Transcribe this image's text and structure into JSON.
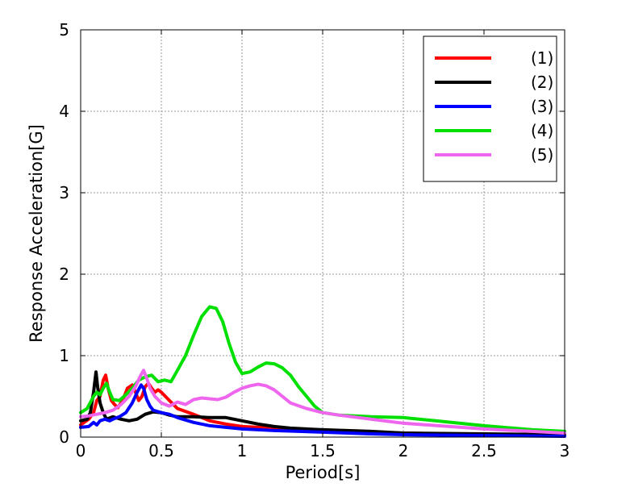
{
  "chart_data": {
    "type": "line",
    "title": "",
    "xlabel": "Period[s]",
    "ylabel": "Response Acceleration[G]",
    "xlim": [
      0,
      3
    ],
    "ylim": [
      0,
      5
    ],
    "x_ticks": [
      "0",
      "0.5",
      "1",
      "1.5",
      "2",
      "2.5",
      "3"
    ],
    "y_ticks": [
      "0",
      "1",
      "2",
      "3",
      "4",
      "5"
    ],
    "grid": true,
    "legend_position": "top-right",
    "series": [
      {
        "name": "(1)",
        "color": "#ff0000",
        "points": [
          [
            0,
            0.15
          ],
          [
            0.05,
            0.22
          ],
          [
            0.08,
            0.3
          ],
          [
            0.1,
            0.45
          ],
          [
            0.12,
            0.5
          ],
          [
            0.14,
            0.7
          ],
          [
            0.155,
            0.76
          ],
          [
            0.17,
            0.6
          ],
          [
            0.19,
            0.45
          ],
          [
            0.21,
            0.4
          ],
          [
            0.23,
            0.36
          ],
          [
            0.26,
            0.45
          ],
          [
            0.29,
            0.6
          ],
          [
            0.32,
            0.64
          ],
          [
            0.34,
            0.55
          ],
          [
            0.36,
            0.45
          ],
          [
            0.38,
            0.5
          ],
          [
            0.4,
            0.62
          ],
          [
            0.42,
            0.66
          ],
          [
            0.44,
            0.6
          ],
          [
            0.46,
            0.55
          ],
          [
            0.48,
            0.58
          ],
          [
            0.5,
            0.55
          ],
          [
            0.55,
            0.45
          ],
          [
            0.6,
            0.35
          ],
          [
            0.7,
            0.28
          ],
          [
            0.8,
            0.2
          ],
          [
            0.9,
            0.16
          ],
          [
            1.0,
            0.13
          ],
          [
            1.2,
            0.11
          ],
          [
            1.5,
            0.08
          ],
          [
            1.8,
            0.06
          ],
          [
            2.0,
            0.05
          ],
          [
            2.5,
            0.03
          ],
          [
            3.0,
            0.02
          ]
        ]
      },
      {
        "name": "(2)",
        "color": "#000000",
        "points": [
          [
            0,
            0.2
          ],
          [
            0.04,
            0.22
          ],
          [
            0.06,
            0.3
          ],
          [
            0.08,
            0.55
          ],
          [
            0.095,
            0.8
          ],
          [
            0.105,
            0.62
          ],
          [
            0.12,
            0.42
          ],
          [
            0.14,
            0.3
          ],
          [
            0.16,
            0.22
          ],
          [
            0.2,
            0.25
          ],
          [
            0.25,
            0.22
          ],
          [
            0.3,
            0.2
          ],
          [
            0.35,
            0.22
          ],
          [
            0.4,
            0.28
          ],
          [
            0.45,
            0.31
          ],
          [
            0.5,
            0.3
          ],
          [
            0.55,
            0.27
          ],
          [
            0.6,
            0.25
          ],
          [
            0.7,
            0.25
          ],
          [
            0.8,
            0.24
          ],
          [
            0.9,
            0.24
          ],
          [
            1.0,
            0.2
          ],
          [
            1.1,
            0.16
          ],
          [
            1.2,
            0.13
          ],
          [
            1.3,
            0.11
          ],
          [
            1.5,
            0.09
          ],
          [
            1.8,
            0.07
          ],
          [
            2.0,
            0.05
          ],
          [
            2.5,
            0.04
          ],
          [
            3.0,
            0.03
          ]
        ]
      },
      {
        "name": "(3)",
        "color": "#0000ff",
        "points": [
          [
            0,
            0.12
          ],
          [
            0.05,
            0.13
          ],
          [
            0.08,
            0.18
          ],
          [
            0.1,
            0.15
          ],
          [
            0.12,
            0.2
          ],
          [
            0.15,
            0.22
          ],
          [
            0.18,
            0.2
          ],
          [
            0.2,
            0.22
          ],
          [
            0.24,
            0.25
          ],
          [
            0.28,
            0.3
          ],
          [
            0.32,
            0.42
          ],
          [
            0.35,
            0.55
          ],
          [
            0.375,
            0.64
          ],
          [
            0.39,
            0.6
          ],
          [
            0.41,
            0.46
          ],
          [
            0.43,
            0.38
          ],
          [
            0.45,
            0.33
          ],
          [
            0.5,
            0.3
          ],
          [
            0.55,
            0.28
          ],
          [
            0.6,
            0.24
          ],
          [
            0.7,
            0.18
          ],
          [
            0.8,
            0.14
          ],
          [
            0.9,
            0.12
          ],
          [
            1.0,
            0.1
          ],
          [
            1.2,
            0.08
          ],
          [
            1.5,
            0.06
          ],
          [
            1.8,
            0.04
          ],
          [
            2.0,
            0.03
          ],
          [
            2.5,
            0.02
          ],
          [
            3.0,
            0.01
          ]
        ]
      },
      {
        "name": "(4)",
        "color": "#00e000",
        "points": [
          [
            0,
            0.3
          ],
          [
            0.04,
            0.35
          ],
          [
            0.08,
            0.5
          ],
          [
            0.1,
            0.55
          ],
          [
            0.12,
            0.52
          ],
          [
            0.14,
            0.6
          ],
          [
            0.16,
            0.66
          ],
          [
            0.18,
            0.55
          ],
          [
            0.2,
            0.46
          ],
          [
            0.24,
            0.45
          ],
          [
            0.28,
            0.52
          ],
          [
            0.32,
            0.6
          ],
          [
            0.36,
            0.7
          ],
          [
            0.4,
            0.74
          ],
          [
            0.44,
            0.76
          ],
          [
            0.48,
            0.68
          ],
          [
            0.52,
            0.7
          ],
          [
            0.56,
            0.68
          ],
          [
            0.6,
            0.82
          ],
          [
            0.65,
            1.0
          ],
          [
            0.7,
            1.25
          ],
          [
            0.75,
            1.48
          ],
          [
            0.8,
            1.6
          ],
          [
            0.84,
            1.58
          ],
          [
            0.88,
            1.42
          ],
          [
            0.92,
            1.15
          ],
          [
            0.96,
            0.92
          ],
          [
            1.0,
            0.78
          ],
          [
            1.05,
            0.8
          ],
          [
            1.1,
            0.86
          ],
          [
            1.15,
            0.91
          ],
          [
            1.2,
            0.9
          ],
          [
            1.25,
            0.85
          ],
          [
            1.3,
            0.76
          ],
          [
            1.35,
            0.62
          ],
          [
            1.4,
            0.5
          ],
          [
            1.45,
            0.38
          ],
          [
            1.5,
            0.3
          ],
          [
            1.6,
            0.27
          ],
          [
            1.8,
            0.25
          ],
          [
            2.0,
            0.24
          ],
          [
            2.2,
            0.2
          ],
          [
            2.5,
            0.14
          ],
          [
            2.8,
            0.09
          ],
          [
            3.0,
            0.07
          ]
        ]
      },
      {
        "name": "(5)",
        "color": "#ee66ee",
        "points": [
          [
            0,
            0.25
          ],
          [
            0.05,
            0.26
          ],
          [
            0.1,
            0.28
          ],
          [
            0.15,
            0.3
          ],
          [
            0.2,
            0.33
          ],
          [
            0.25,
            0.4
          ],
          [
            0.3,
            0.5
          ],
          [
            0.34,
            0.62
          ],
          [
            0.37,
            0.75
          ],
          [
            0.39,
            0.82
          ],
          [
            0.41,
            0.72
          ],
          [
            0.43,
            0.6
          ],
          [
            0.46,
            0.5
          ],
          [
            0.5,
            0.42
          ],
          [
            0.55,
            0.38
          ],
          [
            0.6,
            0.43
          ],
          [
            0.65,
            0.4
          ],
          [
            0.7,
            0.46
          ],
          [
            0.75,
            0.48
          ],
          [
            0.8,
            0.47
          ],
          [
            0.85,
            0.46
          ],
          [
            0.9,
            0.49
          ],
          [
            0.95,
            0.55
          ],
          [
            1.0,
            0.6
          ],
          [
            1.05,
            0.63
          ],
          [
            1.1,
            0.65
          ],
          [
            1.15,
            0.63
          ],
          [
            1.2,
            0.58
          ],
          [
            1.25,
            0.5
          ],
          [
            1.3,
            0.42
          ],
          [
            1.4,
            0.35
          ],
          [
            1.5,
            0.3
          ],
          [
            1.6,
            0.27
          ],
          [
            1.8,
            0.22
          ],
          [
            2.0,
            0.17
          ],
          [
            2.5,
            0.1
          ],
          [
            3.0,
            0.05
          ]
        ]
      }
    ]
  }
}
